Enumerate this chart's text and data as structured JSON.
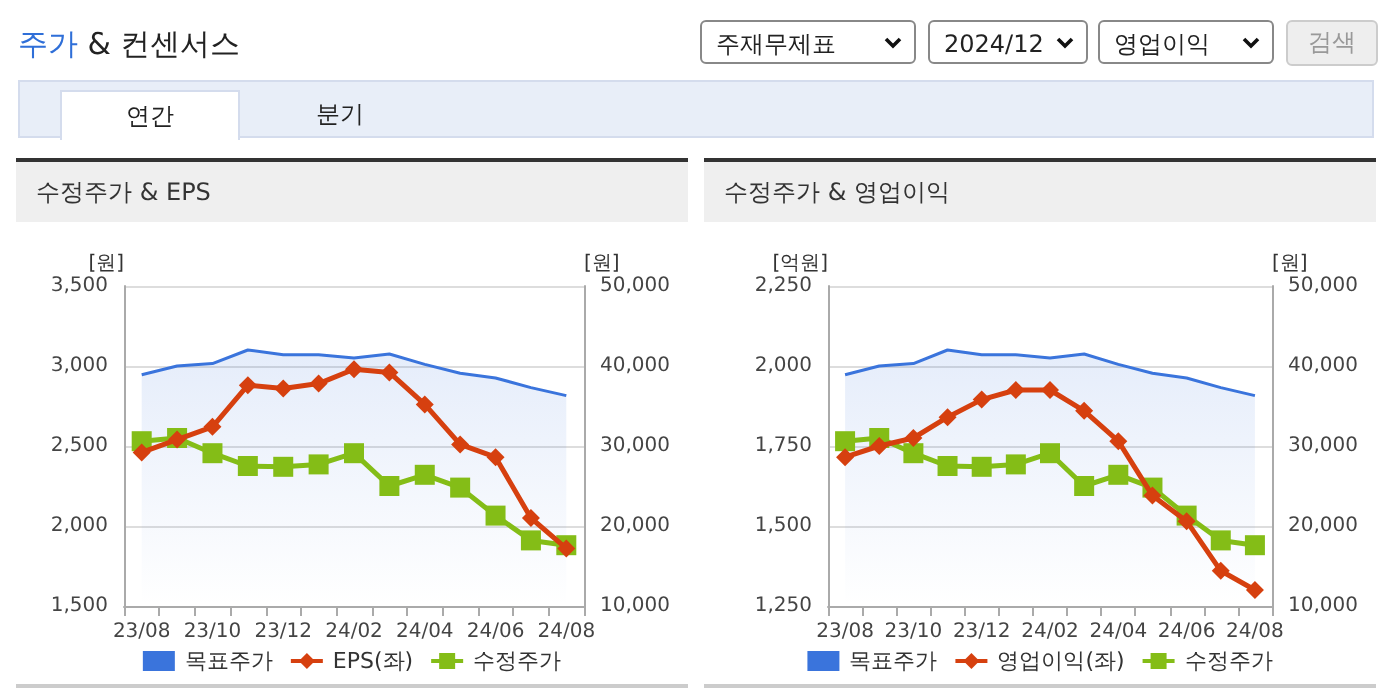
{
  "chart_data": [
    {
      "type": "other",
      "title": "주가 & 컨센서스",
      "annotations": [
        "주재무제표",
        "2024/12",
        "영업이익",
        "검색",
        "연간",
        "분기"
      ]
    },
    {
      "type": "line",
      "title": "수정주가 & EPS",
      "ylabel": "[원]",
      "y2label": "[원]",
      "categories": [
        "23/08",
        null,
        "23/10",
        null,
        "23/12",
        null,
        "24/02",
        null,
        "24/04",
        null,
        "24/06",
        null,
        "24/08"
      ],
      "series": [
        {
          "name": "목표주가",
          "type": "area",
          "axis": "y2",
          "color": "#3a74dc",
          "marker": "none",
          "values": [
            38900,
            40000,
            40300,
            42000,
            41400,
            41400,
            41000,
            41500,
            40200,
            39100,
            38500,
            37300,
            36300
          ]
        },
        {
          "name": "EPS(좌)",
          "type": "line",
          "color": "#d6400f",
          "marker": "diamond",
          "values": [
            2460,
            2540,
            2620,
            2880,
            2860,
            2890,
            2980,
            2960,
            2760,
            2510,
            2430,
            2050,
            1860
          ]
        },
        {
          "name": "수정주가",
          "type": "line",
          "axis": "y2",
          "color": "#84bd17",
          "marker": "square",
          "values": [
            30600,
            31000,
            29100,
            27500,
            27400,
            27700,
            29100,
            25000,
            26400,
            24800,
            21300,
            18200,
            17600
          ]
        }
      ],
      "ylim": [
        1500,
        3500
      ],
      "yticks": [
        {
          "value": 1500,
          "label": "1,500"
        },
        {
          "value": 2000,
          "label": "2,000"
        },
        {
          "value": 2500,
          "label": "2,500"
        },
        {
          "value": 3000,
          "label": "3,000"
        },
        {
          "value": 3500,
          "label": "3,500"
        }
      ],
      "y2lim": [
        10000,
        50000
      ],
      "y2ticks": [
        {
          "value": 10000,
          "label": "10,000"
        },
        {
          "value": 20000,
          "label": "20,000"
        },
        {
          "value": 30000,
          "label": "30,000"
        },
        {
          "value": 40000,
          "label": "40,000"
        },
        {
          "value": 50000,
          "label": "50,000"
        }
      ],
      "grid": "y",
      "legend": "bottom",
      "line_style": "solid"
    },
    {
      "type": "line",
      "title": "수정주가 & 영업이익",
      "ylabel": "[억원]",
      "y2label": "[원]",
      "categories": [
        "23/08",
        null,
        "23/10",
        null,
        "23/12",
        null,
        "24/02",
        null,
        "24/04",
        null,
        "24/06",
        null,
        "24/08"
      ],
      "series": [
        {
          "name": "목표주가",
          "type": "area",
          "axis": "y2",
          "color": "#3a74dc",
          "marker": "none",
          "values": [
            38900,
            40000,
            40300,
            42000,
            41400,
            41400,
            41000,
            41500,
            40200,
            39100,
            38500,
            37300,
            36300
          ]
        },
        {
          "name": "영업이익(좌)",
          "type": "line",
          "color": "#d6400f",
          "marker": "diamond",
          "values": [
            1715,
            1750,
            1775,
            1840,
            1895,
            1925,
            1925,
            1860,
            1765,
            1595,
            1515,
            1360,
            1300
          ]
        },
        {
          "name": "수정주가",
          "type": "line",
          "axis": "y2",
          "color": "#84bd17",
          "marker": "square",
          "values": [
            30600,
            31000,
            29100,
            27500,
            27400,
            27700,
            29100,
            25000,
            26400,
            24800,
            21300,
            18200,
            17600
          ]
        }
      ],
      "ylim": [
        1250,
        2250
      ],
      "yticks": [
        {
          "value": 1250,
          "label": "1,250"
        },
        {
          "value": 1500,
          "label": "1,500"
        },
        {
          "value": 1750,
          "label": "1,750"
        },
        {
          "value": 2000,
          "label": "2,000"
        },
        {
          "value": 2250,
          "label": "2,250"
        }
      ],
      "y2lim": [
        10000,
        50000
      ],
      "y2ticks": [
        {
          "value": 10000,
          "label": "10,000"
        },
        {
          "value": 20000,
          "label": "20,000"
        },
        {
          "value": 30000,
          "label": "30,000"
        },
        {
          "value": 40000,
          "label": "40,000"
        },
        {
          "value": 50000,
          "label": "50,000"
        }
      ],
      "grid": "y",
      "legend": "bottom",
      "line_style": "solid"
    }
  ]
}
